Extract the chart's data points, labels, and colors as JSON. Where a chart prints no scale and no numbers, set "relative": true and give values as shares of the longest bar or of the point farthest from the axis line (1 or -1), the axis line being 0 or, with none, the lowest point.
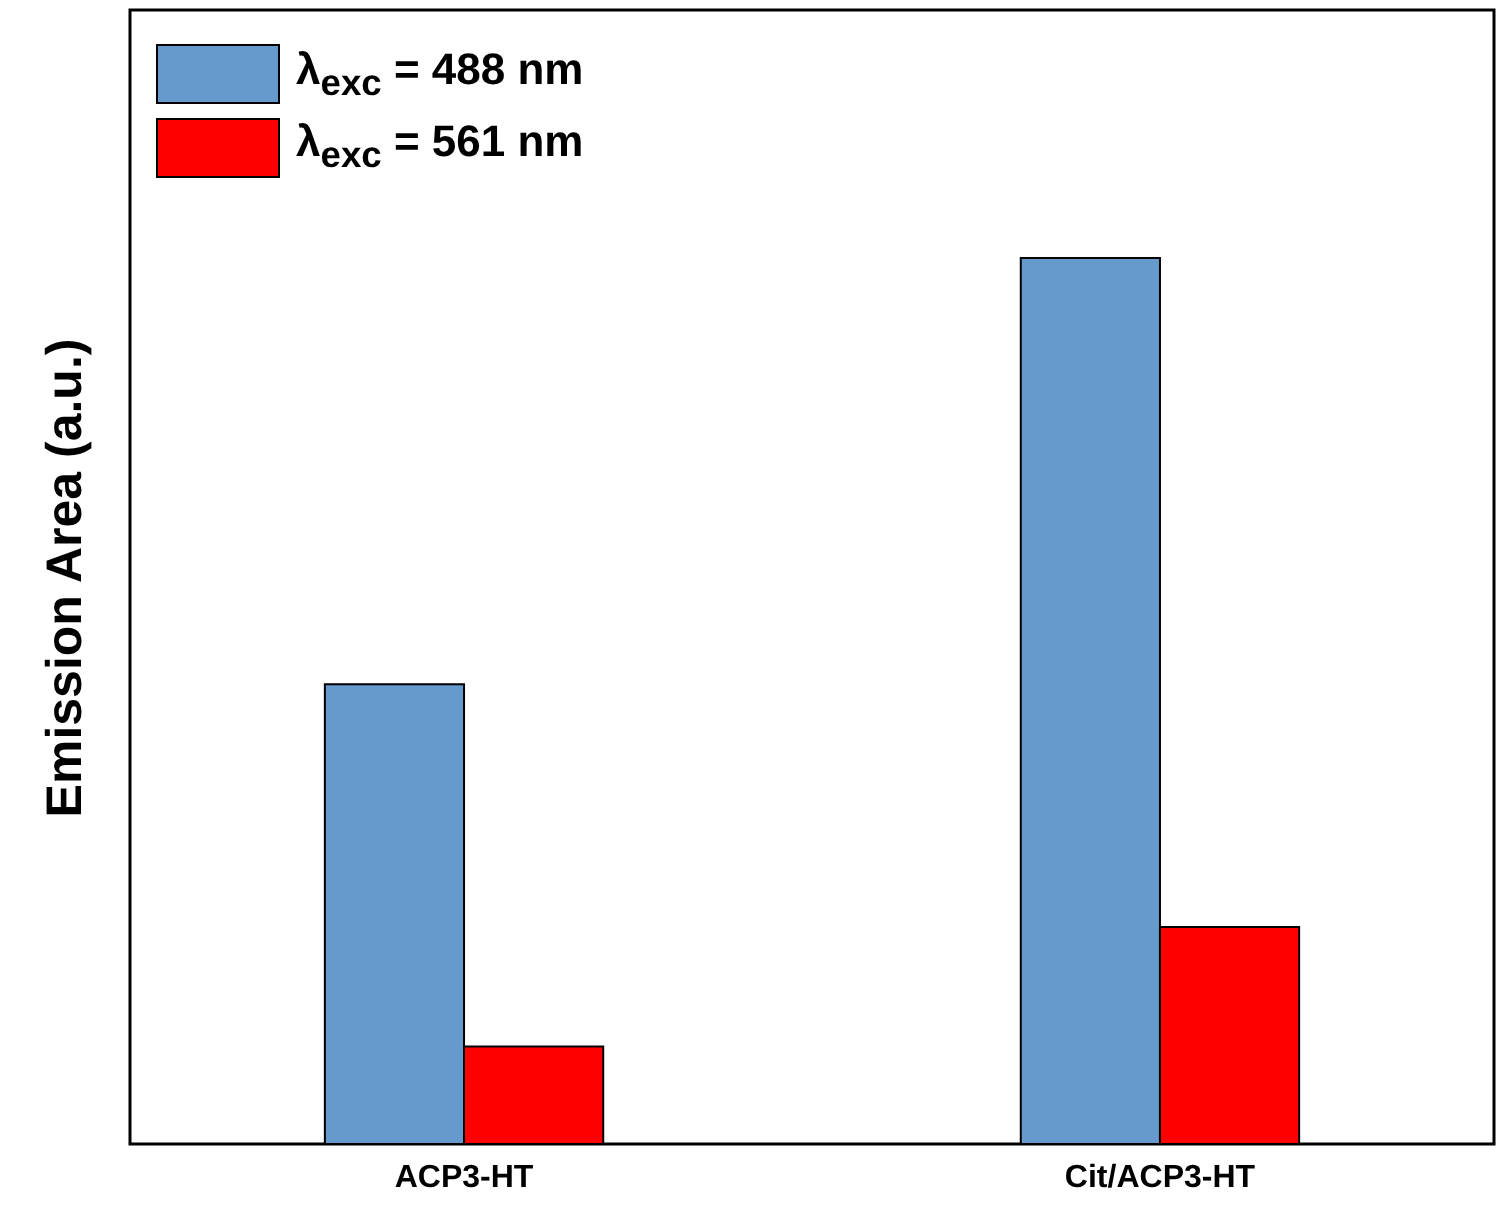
{
  "chart_data": {
    "type": "bar",
    "relative": true,
    "ylabel": "Emission Area (a.u.)",
    "categories": [
      "ACP3-HT",
      "Cit/ACP3-HT"
    ],
    "series": [
      {
        "name": "λ$_{exc}$ = 488 nm",
        "color": "#6699cc",
        "values": [
          0.519,
          1
        ]
      },
      {
        "name": "λ$_{exc}$ = 561 nm",
        "color": "#ff0000",
        "values": [
          0.11,
          0.245
        ]
      }
    ],
    "legend": "top left"
  }
}
